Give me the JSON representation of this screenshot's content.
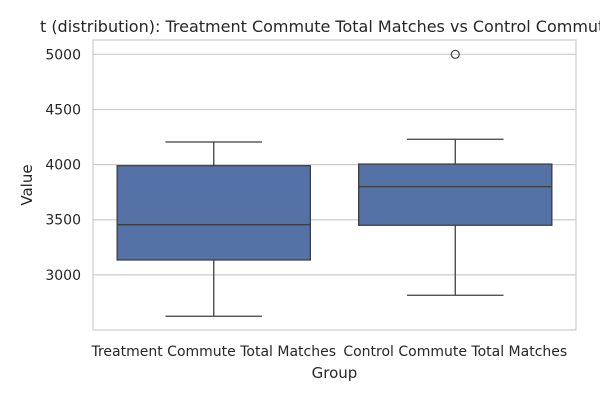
{
  "chart_data": {
    "type": "box",
    "title": "t (distribution): Treatment Commute Total Matches vs Control Commute T",
    "xlabel": "Group",
    "ylabel": "Value",
    "ylim": [
      2500,
      5130
    ],
    "yticks": [
      3000,
      3500,
      4000,
      4500,
      5000
    ],
    "grid": true,
    "box_color": "#5572a6",
    "line_color": "#3f3f3f",
    "grid_color": "#cccccc",
    "categories": [
      "Treatment Commute Total Matches",
      "Control Commute Total Matches"
    ],
    "boxes": [
      {
        "name": "Treatment Commute Total Matches",
        "whisker_low": 2625,
        "q1": 3135,
        "median": 3455,
        "q3": 3990,
        "whisker_high": 4205,
        "outliers": []
      },
      {
        "name": "Control Commute Total Matches",
        "whisker_low": 2815,
        "q1": 3450,
        "median": 3800,
        "q3": 4005,
        "whisker_high": 4230,
        "outliers": [
          5000
        ]
      }
    ]
  }
}
